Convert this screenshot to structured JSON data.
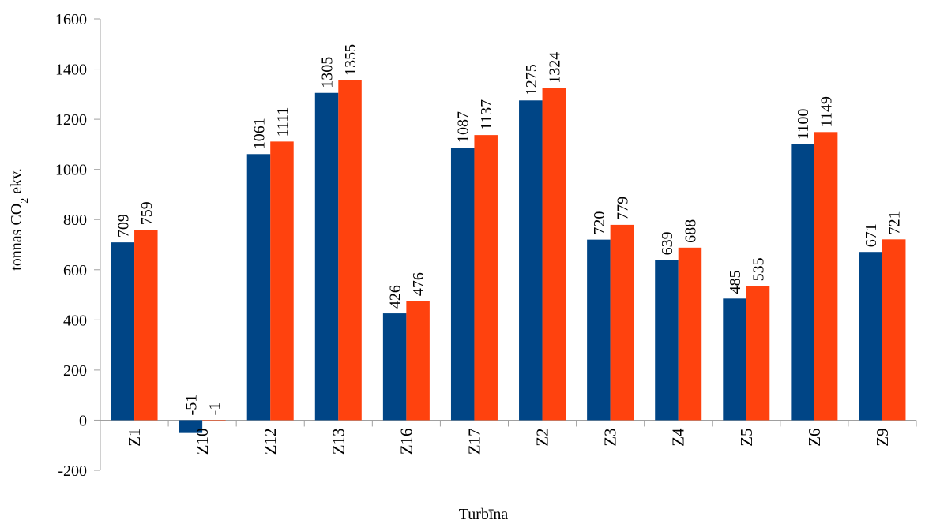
{
  "chart_data": {
    "type": "bar",
    "categories": [
      "Z1",
      "Z10",
      "Z12",
      "Z13",
      "Z16",
      "Z17",
      "Z2",
      "Z3",
      "Z4",
      "Z5",
      "Z6",
      "Z9"
    ],
    "series": [
      {
        "values": [
          709,
          -51,
          1061,
          1305,
          426,
          1087,
          1275,
          720,
          639,
          485,
          1100,
          671
        ],
        "color": "#004586"
      },
      {
        "values": [
          759,
          -1,
          1111,
          1355,
          476,
          1137,
          1324,
          779,
          688,
          535,
          1149,
          721
        ],
        "color": "#ff420e"
      }
    ],
    "xlabel": "Turbīna",
    "ylabel": {
      "prefix": "tonnas CO",
      "subscript": "2",
      "suffix": " ekv."
    },
    "ylim": [
      -200,
      1600
    ],
    "yticks": [
      -200,
      0,
      200,
      400,
      600,
      800,
      1000,
      1200,
      1400,
      1600
    ],
    "grid": false,
    "legend": "none"
  }
}
